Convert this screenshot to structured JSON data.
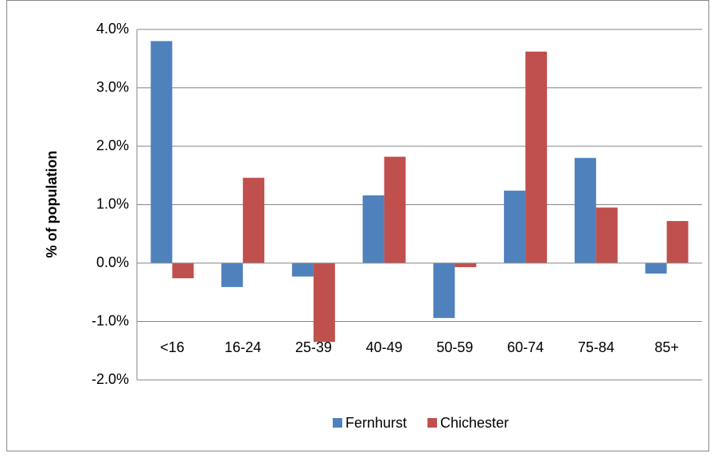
{
  "chart_data": {
    "type": "bar",
    "y_label": "% of population",
    "categories": [
      "<16",
      "16-24",
      "25-39",
      "40-49",
      "50-59",
      "60-74",
      "75-84",
      "85+"
    ],
    "series": [
      {
        "name": "Fernhurst",
        "color": "#4f81bd",
        "values": [
          3.8,
          -0.41,
          -0.23,
          1.16,
          -0.94,
          1.24,
          1.8,
          -0.18
        ]
      },
      {
        "name": "Chichester",
        "color": "#c0504d",
        "values": [
          -0.26,
          1.46,
          -1.35,
          1.82,
          -0.07,
          3.62,
          0.95,
          0.72
        ]
      }
    ],
    "ylim": [
      -2,
      4
    ],
    "yticks": [
      {
        "value": -2,
        "label": "-2.0%"
      },
      {
        "value": -1,
        "label": "-1.0%"
      },
      {
        "value": 0,
        "label": "0.0%"
      },
      {
        "value": 1,
        "label": "1.0%"
      },
      {
        "value": 2,
        "label": "2.0%"
      },
      {
        "value": 3,
        "label": "3.0%"
      },
      {
        "value": 4,
        "label": "4.0%"
      }
    ],
    "grid": true,
    "legend": "bottom"
  }
}
